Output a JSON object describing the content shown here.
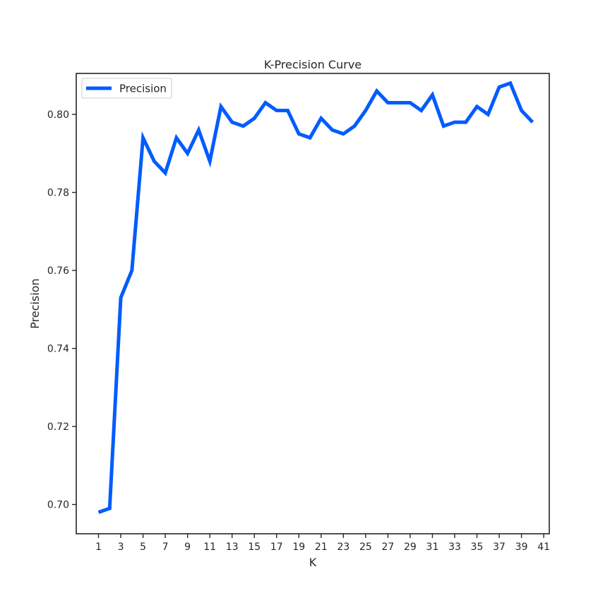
{
  "chart_data": {
    "type": "line",
    "title": "K-Precision Curve",
    "xlabel": "K",
    "ylabel": "Precision",
    "xlim": [
      -1,
      41.5
    ],
    "ylim": [
      0.6925,
      0.8105
    ],
    "xticks": [
      1,
      3,
      5,
      7,
      9,
      11,
      13,
      15,
      17,
      19,
      21,
      23,
      25,
      27,
      29,
      31,
      33,
      35,
      37,
      39,
      41
    ],
    "xtick_labels": [
      "1",
      "3",
      "5",
      "7",
      "9",
      "11",
      "13",
      "15",
      "17",
      "19",
      "21",
      "23",
      "25",
      "27",
      "29",
      "31",
      "33",
      "35",
      "37",
      "39",
      "41"
    ],
    "yticks": [
      0.7,
      0.72,
      0.74,
      0.76,
      0.78,
      0.8
    ],
    "ytick_labels": [
      "0.70",
      "0.72",
      "0.74",
      "0.76",
      "0.78",
      "0.80"
    ],
    "grid": false,
    "legend": {
      "position": "top-left",
      "entries": [
        "Precision"
      ]
    },
    "colors": {
      "line": "#005cff",
      "axes": "#262626"
    },
    "series": [
      {
        "name": "Precision",
        "x": [
          1,
          2,
          3,
          4,
          5,
          6,
          7,
          8,
          9,
          10,
          11,
          12,
          13,
          14,
          15,
          16,
          17,
          18,
          19,
          20,
          21,
          22,
          23,
          24,
          25,
          26,
          27,
          28,
          29,
          30,
          31,
          32,
          33,
          34,
          35,
          36,
          37,
          38,
          39,
          40
        ],
        "y": [
          0.698,
          0.699,
          0.753,
          0.76,
          0.794,
          0.788,
          0.785,
          0.794,
          0.79,
          0.796,
          0.788,
          0.802,
          0.798,
          0.797,
          0.799,
          0.803,
          0.801,
          0.801,
          0.795,
          0.794,
          0.799,
          0.796,
          0.795,
          0.797,
          0.801,
          0.806,
          0.803,
          0.803,
          0.803,
          0.801,
          0.805,
          0.797,
          0.798,
          0.798,
          0.802,
          0.8,
          0.807,
          0.808,
          0.801,
          0.798
        ]
      }
    ]
  }
}
